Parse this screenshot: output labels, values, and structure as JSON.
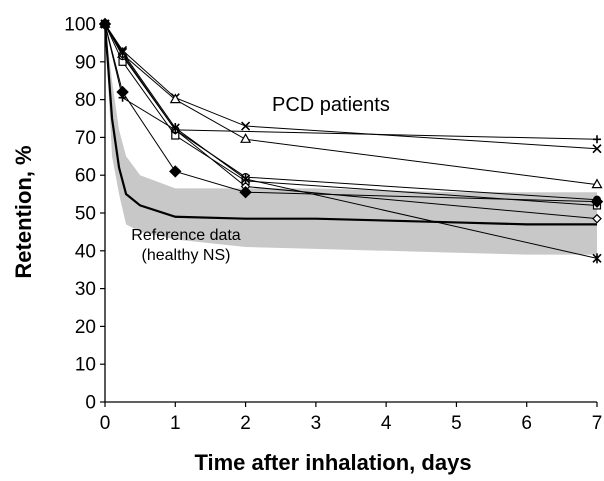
{
  "chart_data": {
    "type": "line",
    "title": "",
    "xlabel": "Time after inhalation, days",
    "ylabel": "Retention, %",
    "xlim": [
      0,
      7
    ],
    "ylim": [
      0,
      100
    ],
    "xticks": [
      "0",
      "1",
      "2",
      "3",
      "4",
      "5",
      "6",
      "7"
    ],
    "yticks": [
      "0",
      "10",
      "20",
      "30",
      "40",
      "50",
      "60",
      "70",
      "80",
      "90",
      "100"
    ],
    "grid": false,
    "annotations": {
      "group_label": "PCD patients",
      "reference_label_1": "Reference data",
      "reference_label_2": "(healthy NS)"
    },
    "reference": {
      "x": [
        0,
        0.1,
        0.2,
        0.3,
        0.5,
        1,
        2,
        3,
        4,
        5,
        6,
        7
      ],
      "mean": [
        100,
        75,
        62,
        55,
        52,
        49,
        48.5,
        48.5,
        48,
        47.5,
        47,
        47
      ],
      "upper": [
        100,
        85,
        72,
        65,
        60,
        56.5,
        56.5,
        56.5,
        56,
        55.5,
        55.5,
        55.5
      ],
      "lower": [
        100,
        65,
        55,
        47,
        45,
        43,
        41,
        40.5,
        40,
        39.5,
        39,
        39
      ]
    },
    "series": [
      {
        "marker": "plus",
        "x": [
          0,
          0.25,
          1,
          7
        ],
        "y": [
          100,
          80.5,
          72,
          69.5
        ]
      },
      {
        "marker": "x",
        "x": [
          0,
          0.25,
          1,
          2,
          7
        ],
        "y": [
          100,
          93,
          80.5,
          73,
          67
        ]
      },
      {
        "marker": "triangle",
        "x": [
          0,
          0.25,
          1,
          2,
          7
        ],
        "y": [
          100,
          92,
          80,
          69.5,
          57.5
        ]
      },
      {
        "marker": "square",
        "x": [
          0,
          0.25,
          1,
          2,
          7
        ],
        "y": [
          100,
          90,
          70.5,
          58.5,
          52
        ]
      },
      {
        "marker": "circle",
        "x": [
          0,
          0.25,
          1,
          2,
          7
        ],
        "y": [
          100,
          91.5,
          72,
          59.5,
          53.5
        ]
      },
      {
        "marker": "diamond-open",
        "x": [
          0,
          0.25,
          1,
          2,
          7
        ],
        "y": [
          100,
          92,
          72,
          57,
          48.5
        ]
      },
      {
        "marker": "diamond-filled",
        "x": [
          0,
          0.25,
          1,
          2,
          7
        ],
        "y": [
          100,
          82,
          61,
          55.5,
          53
        ]
      },
      {
        "marker": "asterisk",
        "x": [
          0,
          0.25,
          1,
          2,
          7
        ],
        "y": [
          100,
          92.5,
          72.5,
          59,
          38
        ]
      }
    ]
  }
}
